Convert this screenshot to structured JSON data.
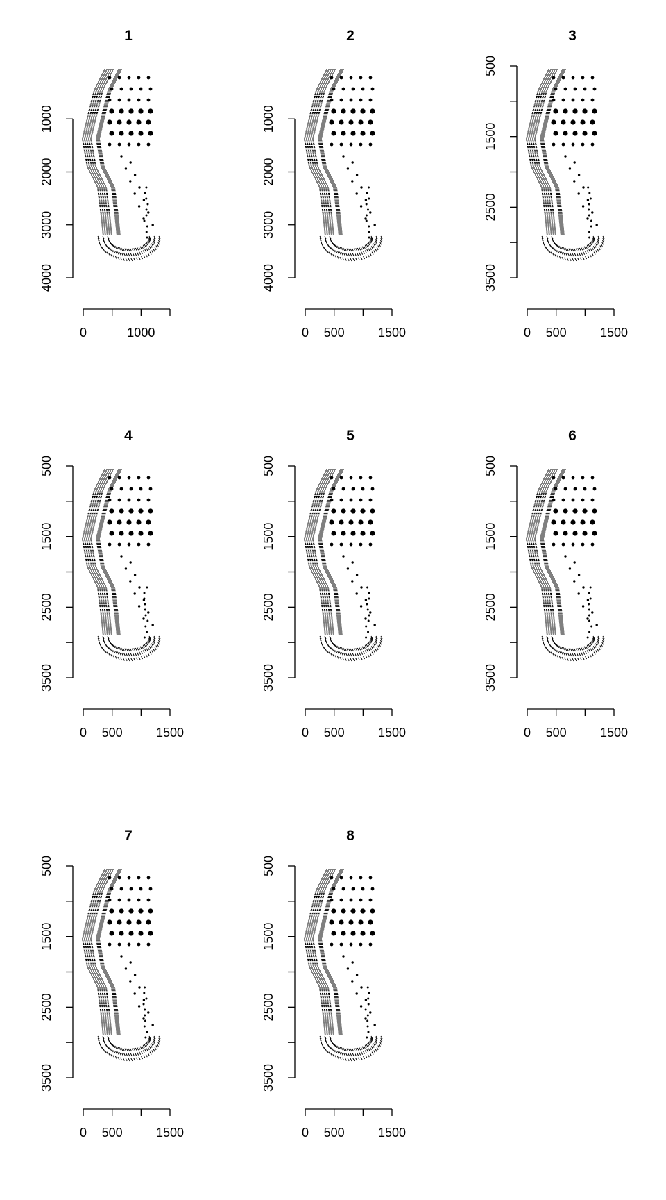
{
  "chart_data": [
    {
      "type": "scatter",
      "title": "1",
      "xlabel": "",
      "ylabel": "",
      "xlim": [
        0,
        1500
      ],
      "ylim": [
        4000,
        0
      ],
      "x_ticks": [
        0,
        500,
        1000,
        1500
      ],
      "x_tick_labels": [
        "0",
        "",
        "1000",
        ""
      ],
      "y_ticks": [
        1000,
        2000,
        3000,
        4000
      ],
      "y_tick_labels": [
        "1000",
        "2000",
        "3000",
        "4000"
      ],
      "points": "shoe-sole outsole print pattern (black pixels)"
    },
    {
      "type": "scatter",
      "title": "2",
      "xlabel": "",
      "ylabel": "",
      "xlim": [
        0,
        1500
      ],
      "ylim": [
        4000,
        0
      ],
      "x_ticks": [
        0,
        500,
        1000,
        1500
      ],
      "x_tick_labels": [
        "0",
        "500",
        "",
        "1500"
      ],
      "y_ticks": [
        1000,
        2000,
        3000,
        4000
      ],
      "y_tick_labels": [
        "1000",
        "2000",
        "3000",
        "4000"
      ],
      "points": "shoe-sole outsole print pattern (black pixels)"
    },
    {
      "type": "scatter",
      "title": "3",
      "xlabel": "",
      "ylabel": "",
      "xlim": [
        0,
        1500
      ],
      "ylim": [
        3500,
        500
      ],
      "x_ticks": [
        0,
        500,
        1000,
        1500
      ],
      "x_tick_labels": [
        "0",
        "500",
        "",
        "1500"
      ],
      "y_ticks": [
        500,
        1000,
        1500,
        2000,
        2500,
        3000,
        3500
      ],
      "y_tick_labels": [
        "500",
        "",
        "1500",
        "",
        "2500",
        "",
        "3500"
      ],
      "points": "shoe-sole outsole print pattern (black pixels)"
    },
    {
      "type": "scatter",
      "title": "4",
      "xlabel": "",
      "ylabel": "",
      "xlim": [
        0,
        1500
      ],
      "ylim": [
        3500,
        500
      ],
      "x_ticks": [
        0,
        500,
        1000,
        1500
      ],
      "x_tick_labels": [
        "0",
        "500",
        "",
        "1500"
      ],
      "y_ticks": [
        500,
        1000,
        1500,
        2000,
        2500,
        3000,
        3500
      ],
      "y_tick_labels": [
        "500",
        "",
        "1500",
        "",
        "2500",
        "",
        "3500"
      ],
      "points": "shoe-sole outsole print pattern (black pixels)"
    },
    {
      "type": "scatter",
      "title": "5",
      "xlabel": "",
      "ylabel": "",
      "xlim": [
        0,
        1500
      ],
      "ylim": [
        3500,
        500
      ],
      "x_ticks": [
        0,
        500,
        1000,
        1500
      ],
      "x_tick_labels": [
        "0",
        "500",
        "",
        "1500"
      ],
      "y_ticks": [
        500,
        1000,
        1500,
        2000,
        2500,
        3000,
        3500
      ],
      "y_tick_labels": [
        "500",
        "",
        "1500",
        "",
        "2500",
        "",
        "3500"
      ],
      "points": "shoe-sole outsole print pattern (black pixels)"
    },
    {
      "type": "scatter",
      "title": "6",
      "xlabel": "",
      "ylabel": "",
      "xlim": [
        0,
        1500
      ],
      "ylim": [
        3500,
        500
      ],
      "x_ticks": [
        0,
        500,
        1000,
        1500
      ],
      "x_tick_labels": [
        "0",
        "500",
        "",
        "1500"
      ],
      "y_ticks": [
        500,
        1000,
        1500,
        2000,
        2500,
        3000,
        3500
      ],
      "y_tick_labels": [
        "500",
        "",
        "1500",
        "",
        "2500",
        "",
        "3500"
      ],
      "points": "shoe-sole outsole print pattern (black pixels)"
    },
    {
      "type": "scatter",
      "title": "7",
      "xlabel": "",
      "ylabel": "",
      "xlim": [
        0,
        1500
      ],
      "ylim": [
        3500,
        500
      ],
      "x_ticks": [
        0,
        500,
        1000,
        1500
      ],
      "x_tick_labels": [
        "0",
        "500",
        "",
        "1500"
      ],
      "y_ticks": [
        500,
        1000,
        1500,
        2000,
        2500,
        3000,
        3500
      ],
      "y_tick_labels": [
        "500",
        "",
        "1500",
        "",
        "2500",
        "",
        "3500"
      ],
      "points": "shoe-sole outsole print pattern (black pixels)"
    },
    {
      "type": "scatter",
      "title": "8",
      "xlabel": "",
      "ylabel": "",
      "xlim": [
        0,
        1500
      ],
      "ylim": [
        3500,
        500
      ],
      "x_ticks": [
        0,
        500,
        1000,
        1500
      ],
      "x_tick_labels": [
        "0",
        "500",
        "",
        "1500"
      ],
      "y_ticks": [
        500,
        1000,
        1500,
        2000,
        2500,
        3000,
        3500
      ],
      "y_tick_labels": [
        "500",
        "",
        "1500",
        "",
        "2500",
        "",
        "3500"
      ],
      "points": "shoe-sole outsole print pattern (black pixels)"
    }
  ]
}
